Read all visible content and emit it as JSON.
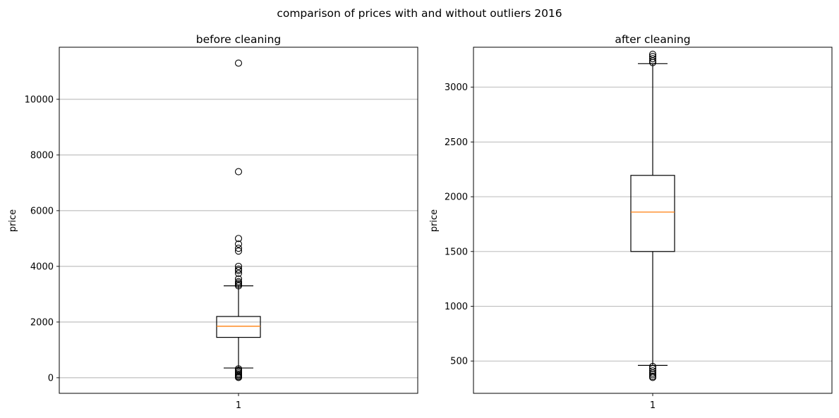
{
  "figure": {
    "suptitle": "comparison of prices with and without outliers 2016"
  },
  "chart_data": [
    {
      "type": "boxplot",
      "title": "before cleaning",
      "xlabel": "",
      "ylabel": "price",
      "categories": [
        "1"
      ],
      "ylim": [
        -560,
        11870
      ],
      "yticks": [
        0,
        2000,
        4000,
        6000,
        8000,
        10000
      ],
      "grid": "y",
      "box": {
        "whisker_low": 350,
        "q1": 1450,
        "median": 1850,
        "q3": 2200,
        "whisker_high": 3300
      },
      "outliers": [
        11300,
        7400,
        5000,
        4800,
        4650,
        4550,
        4000,
        3900,
        3850,
        3750,
        3550,
        3450,
        3400,
        3350,
        3300,
        320,
        270,
        220,
        170,
        120,
        80,
        40,
        10
      ],
      "colors": {
        "box": "#000000",
        "median": "#ff7f0e",
        "grid": "#b0b0b0"
      }
    },
    {
      "type": "boxplot",
      "title": "after cleaning",
      "xlabel": "",
      "ylabel": "price",
      "categories": [
        "1"
      ],
      "ylim": [
        205,
        3365
      ],
      "yticks": [
        500,
        1000,
        1500,
        2000,
        2500,
        3000
      ],
      "grid": "y",
      "box": {
        "whisker_low": 460,
        "q1": 1500,
        "median": 1860,
        "q3": 2195,
        "whisker_high": 3215
      },
      "outliers": [
        3300,
        3280,
        3260,
        3240,
        3225,
        450,
        430,
        410,
        390,
        375,
        360,
        350
      ],
      "colors": {
        "box": "#000000",
        "median": "#ff7f0e",
        "grid": "#b0b0b0"
      }
    }
  ]
}
